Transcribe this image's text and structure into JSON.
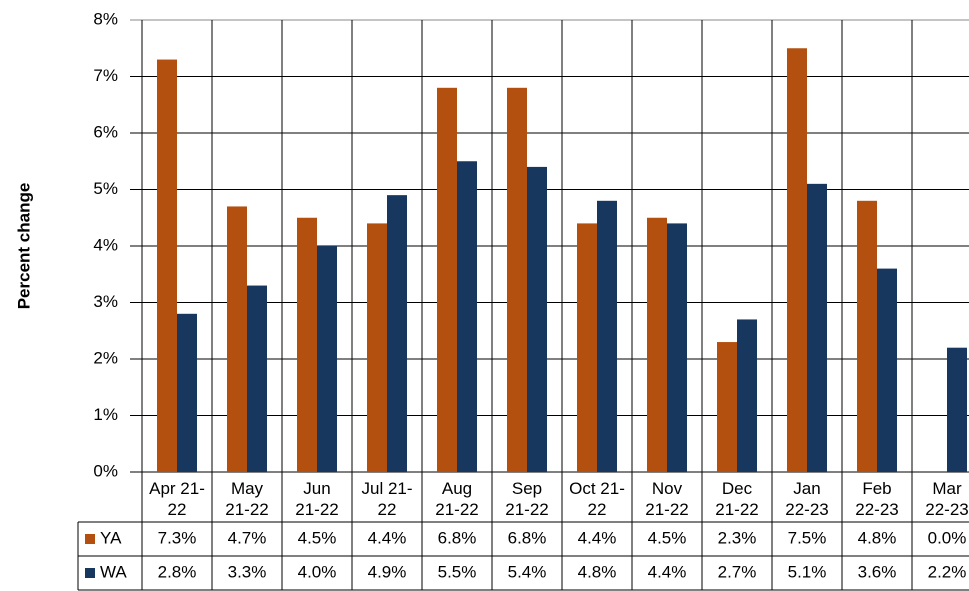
{
  "chart_data": {
    "type": "bar",
    "y_label": "Percent change",
    "categories": [
      "Apr 21-22",
      "May 21-22",
      "Jun 21-22",
      "Jul 21-22",
      "Aug 21-22",
      "Sep 21-22",
      "Oct 21-22",
      "Nov 21-22",
      "Dec 21-22",
      "Jan 22-23",
      "Feb 22-23",
      "Mar 22-23"
    ],
    "series": [
      {
        "name": "YA",
        "color": "#b3500f",
        "values": [
          7.3,
          4.7,
          4.5,
          4.4,
          6.8,
          6.8,
          4.4,
          4.5,
          2.3,
          7.5,
          4.8,
          0.0
        ],
        "value_labels": [
          "7.3%",
          "4.7%",
          "4.5%",
          "4.4%",
          "6.8%",
          "6.8%",
          "4.4%",
          "4.5%",
          "2.3%",
          "7.5%",
          "4.8%",
          "0.0%"
        ]
      },
      {
        "name": "WA",
        "color": "#17375e",
        "values": [
          2.8,
          3.3,
          4.0,
          4.9,
          5.5,
          5.4,
          4.8,
          4.4,
          2.7,
          5.1,
          3.6,
          2.2
        ],
        "value_labels": [
          "2.8%",
          "3.3%",
          "4.0%",
          "4.9%",
          "5.5%",
          "5.4%",
          "4.8%",
          "4.4%",
          "2.7%",
          "5.1%",
          "3.6%",
          "2.2%"
        ]
      }
    ],
    "ylim": [
      0,
      8
    ],
    "yticks": [
      {
        "value": 0,
        "label": "0%"
      },
      {
        "value": 1,
        "label": "1%"
      },
      {
        "value": 2,
        "label": "2%"
      },
      {
        "value": 3,
        "label": "3%"
      },
      {
        "value": 4,
        "label": "4%"
      },
      {
        "value": 5,
        "label": "5%"
      },
      {
        "value": 6,
        "label": "6%"
      },
      {
        "value": 7,
        "label": "7%"
      },
      {
        "value": 8,
        "label": "8%"
      }
    ],
    "grid": true
  }
}
